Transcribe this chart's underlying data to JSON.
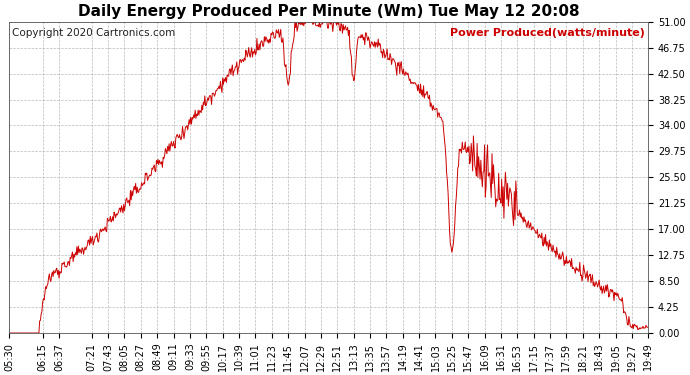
{
  "title": "Daily Energy Produced Per Minute (Wm) Tue May 12 20:08",
  "legend_label": "Power Produced(watts/minute)",
  "copyright": "Copyright 2020 Cartronics.com",
  "line_color": "#cc0000",
  "background_color": "#ffffff",
  "grid_color": "#aaaaaa",
  "ylim": [
    0,
    51
  ],
  "yticks": [
    0.0,
    4.25,
    8.5,
    12.75,
    17.0,
    21.25,
    25.5,
    29.75,
    34.0,
    38.25,
    42.5,
    46.75,
    51.0
  ],
  "xtick_labels": [
    "05:30",
    "06:15",
    "06:37",
    "07:21",
    "07:43",
    "08:05",
    "08:27",
    "08:49",
    "09:11",
    "09:33",
    "09:55",
    "10:17",
    "10:39",
    "11:01",
    "11:23",
    "11:45",
    "12:07",
    "12:29",
    "12:51",
    "13:13",
    "13:35",
    "13:57",
    "14:19",
    "14:41",
    "15:03",
    "15:25",
    "15:47",
    "16:09",
    "16:31",
    "16:53",
    "17:15",
    "17:37",
    "17:59",
    "18:21",
    "18:43",
    "19:05",
    "19:27",
    "19:49"
  ],
  "title_fontsize": 11,
  "legend_fontsize": 8,
  "copyright_fontsize": 7.5,
  "tick_fontsize": 7,
  "title_font_weight": "bold"
}
